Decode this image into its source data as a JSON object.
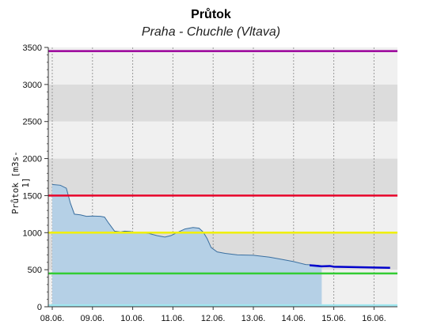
{
  "chart_data": {
    "type": "area",
    "title": "Průtok",
    "subtitle": "Praha - Chuchle (Vltava)",
    "xlabel": "",
    "ylabel": "Průtok [m3s-1]",
    "ylim": [
      0,
      3500
    ],
    "xlim": [
      0,
      8.4
    ],
    "y_ticks": [
      0,
      500,
      1000,
      1500,
      2000,
      2500,
      3000,
      3500
    ],
    "x_ticks": [
      {
        "x": 0,
        "label": "08.06."
      },
      {
        "x": 1,
        "label": "09.06."
      },
      {
        "x": 2,
        "label": "10.06."
      },
      {
        "x": 3,
        "label": "11.06."
      },
      {
        "x": 4,
        "label": "12.06."
      },
      {
        "x": 5,
        "label": "13.06."
      },
      {
        "x": 6,
        "label": "14.06."
      },
      {
        "x": 7,
        "label": "15.06."
      },
      {
        "x": 8,
        "label": "16.06."
      }
    ],
    "grid": true,
    "threshold_lines": [
      {
        "value": 3450,
        "color": "#990099"
      },
      {
        "value": 1500,
        "color": "#e8002a"
      },
      {
        "value": 1000,
        "color": "#f0f000"
      },
      {
        "value": 450,
        "color": "#33cc33"
      },
      {
        "value": 20,
        "color": "#a0e8f0"
      }
    ],
    "series": [
      {
        "type": "area",
        "fill": "#b5d0e6",
        "stroke": "#3a6fa0",
        "x": [
          0.0,
          0.2,
          0.35,
          0.45,
          0.55,
          0.7,
          0.85,
          1.0,
          1.2,
          1.3,
          1.4,
          1.55,
          1.7,
          1.8,
          1.95,
          2.1,
          2.4,
          2.6,
          2.8,
          2.95,
          3.1,
          3.3,
          3.5,
          3.65,
          3.75,
          3.85,
          3.95,
          4.1,
          4.3,
          4.6,
          5.0,
          5.4,
          5.7,
          6.0,
          6.3,
          6.6,
          6.7
        ],
        "values": [
          1650,
          1640,
          1600,
          1400,
          1250,
          1240,
          1220,
          1225,
          1220,
          1210,
          1130,
          1020,
          1010,
          1020,
          1015,
          1000,
          990,
          960,
          940,
          960,
          1000,
          1050,
          1070,
          1060,
          1010,
          920,
          800,
          740,
          720,
          700,
          695,
          670,
          640,
          610,
          570,
          560,
          550
        ]
      },
      {
        "type": "line",
        "stroke": "#0000cc",
        "x": [
          6.4,
          6.7,
          6.9,
          7.0,
          7.5,
          8.0,
          8.4
        ],
        "values": [
          560,
          545,
          550,
          540,
          535,
          530,
          525
        ]
      }
    ]
  }
}
